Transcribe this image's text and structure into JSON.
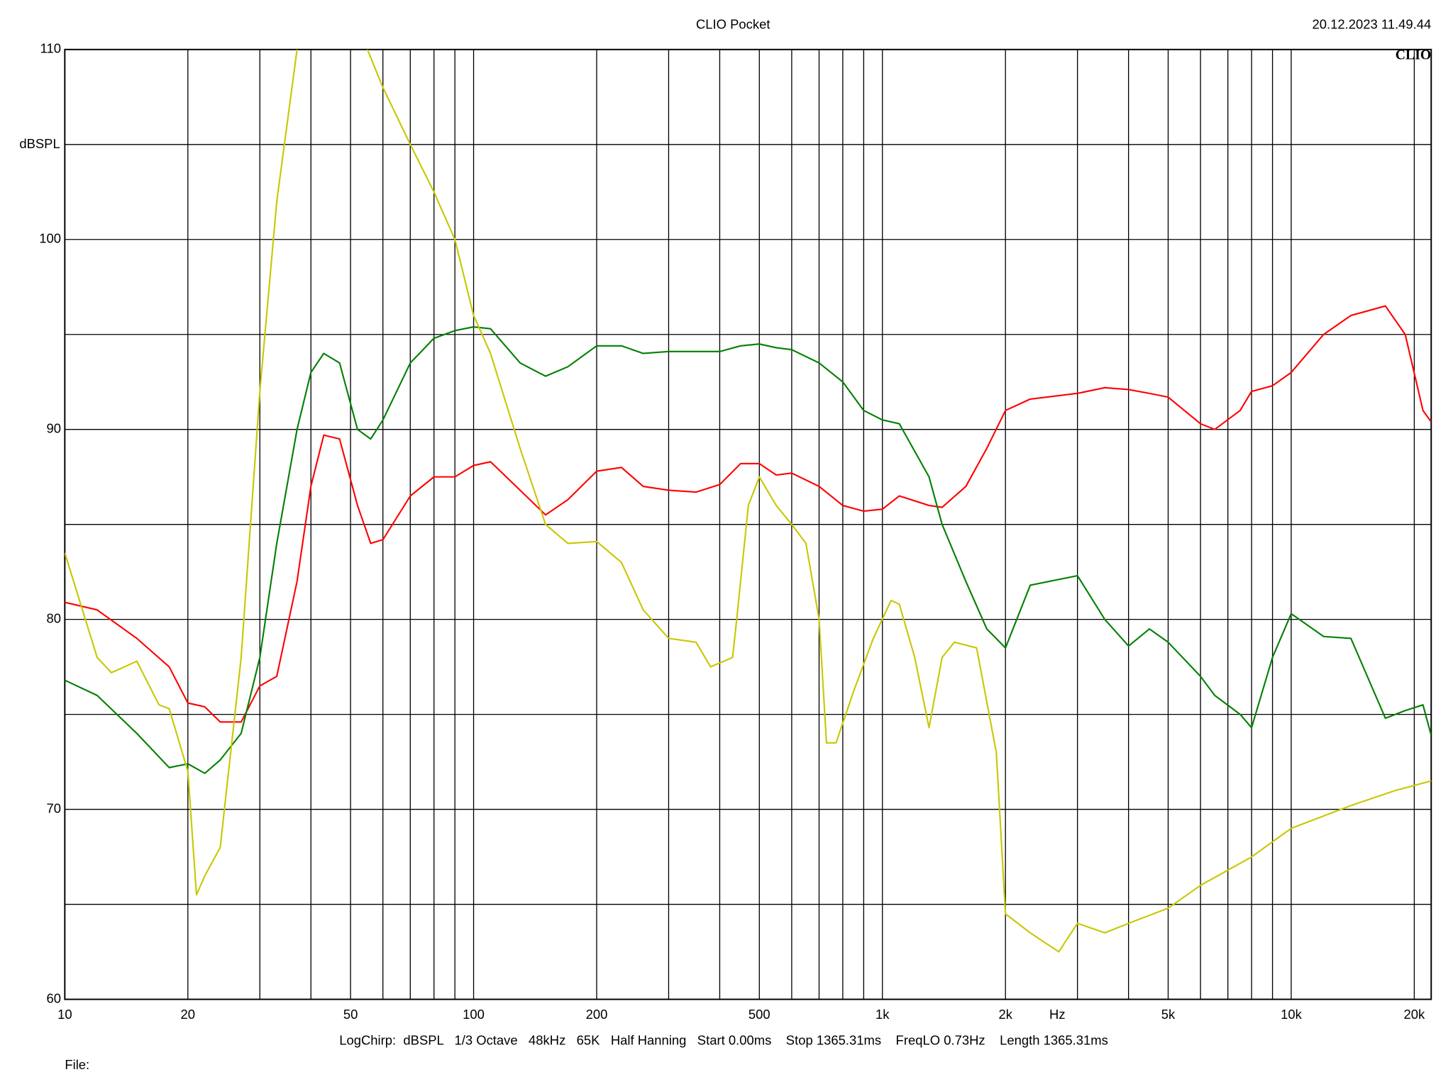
{
  "chart_data": {
    "type": "line",
    "title": "CLIO Pocket",
    "timestamp": "20.12.2023 11.49.44",
    "logo": "CLIO",
    "footer": "LogChirp:  dBSPL   1/3 Octave   48kHz   65K   Half Hanning   Start 0.00ms    Stop 1365.31ms    FreqLO 0.73Hz    Length 1365.31ms",
    "file_label": "File:",
    "x_label": "Hz",
    "y_label": "dBSPL",
    "x_log": true,
    "grid": true,
    "xlim": [
      10,
      22000
    ],
    "ylim": [
      60,
      110
    ],
    "xticks": [
      10,
      20,
      50,
      100,
      200,
      500,
      {
        "value": 1000,
        "label": "1k"
      },
      {
        "value": 2000,
        "label": "2k"
      },
      {
        "value": 5000,
        "label": "5k"
      },
      {
        "value": 10000,
        "label": "10k"
      },
      {
        "value": 20000,
        "label": "20k"
      }
    ],
    "xminor_ticks": [
      30,
      40,
      60,
      70,
      80,
      90,
      300,
      400,
      600,
      700,
      800,
      900,
      3000,
      4000,
      6000,
      7000,
      8000,
      9000
    ],
    "yticks": [
      60,
      70,
      80,
      90,
      100,
      110
    ],
    "yminor_ticks": [
      65,
      75,
      85,
      95,
      105
    ],
    "series": [
      {
        "color": "#ff0000",
        "x": [
          10,
          12,
          15,
          18,
          20,
          22,
          24,
          27,
          30,
          33,
          37,
          40,
          43,
          47,
          52,
          56,
          60,
          70,
          80,
          90,
          100,
          110,
          130,
          150,
          170,
          200,
          230,
          260,
          300,
          350,
          400,
          450,
          500,
          550,
          600,
          700,
          800,
          900,
          1000,
          1100,
          1300,
          1400,
          1600,
          1800,
          2000,
          2300,
          3000,
          3500,
          4000,
          4500,
          5000,
          6000,
          6500,
          7500,
          8000,
          9000,
          10000,
          12000,
          14000,
          17000,
          19000,
          21000,
          22000
        ],
        "values": [
          80.9,
          80.5,
          79,
          77.5,
          75.6,
          75.4,
          74.6,
          74.6,
          76.5,
          77,
          82,
          87,
          89.7,
          89.5,
          86,
          84,
          84.2,
          86.5,
          87.5,
          87.5,
          88.1,
          88.3,
          86.8,
          85.5,
          86.3,
          87.8,
          88,
          87,
          86.8,
          86.7,
          87.1,
          88.2,
          88.2,
          87.6,
          87.7,
          87,
          86,
          85.7,
          85.8,
          86.5,
          86,
          85.9,
          87,
          89,
          91,
          91.6,
          91.9,
          92.2,
          92.1,
          91.9,
          91.7,
          90.3,
          90,
          91,
          92,
          92.3,
          93,
          95,
          96,
          96.5,
          95,
          91,
          90.4
        ]
      },
      {
        "color": "#008000",
        "x": [
          10,
          12,
          15,
          18,
          20,
          22,
          24,
          27,
          30,
          33,
          37,
          40,
          43,
          47,
          52,
          56,
          60,
          70,
          80,
          90,
          100,
          110,
          130,
          150,
          170,
          200,
          230,
          260,
          300,
          350,
          400,
          450,
          500,
          550,
          600,
          700,
          800,
          900,
          1000,
          1100,
          1300,
          1400,
          1600,
          1800,
          2000,
          2300,
          3000,
          3500,
          4000,
          4500,
          5000,
          6000,
          6500,
          7500,
          8000,
          9000,
          10000,
          12000,
          14000,
          17000,
          19000,
          21000,
          22000
        ],
        "values": [
          76.8,
          76,
          74,
          72.2,
          72.4,
          71.9,
          72.6,
          74,
          78,
          84,
          90,
          93,
          94,
          93.5,
          90,
          89.5,
          90.5,
          93.5,
          94.8,
          95.2,
          95.4,
          95.3,
          93.5,
          92.8,
          93.3,
          94.4,
          94.4,
          94,
          94.1,
          94.1,
          94.1,
          94.4,
          94.5,
          94.3,
          94.2,
          93.5,
          92.5,
          91,
          90.5,
          90.3,
          87.5,
          85,
          82,
          79.5,
          78.5,
          81.8,
          82.3,
          80,
          78.6,
          79.5,
          78.8,
          77,
          76,
          75,
          74.3,
          78,
          80.3,
          79.1,
          79,
          74.8,
          75.2,
          75.5,
          73.9
        ]
      },
      {
        "color": "#c8c800",
        "x": [
          10,
          12,
          13,
          14,
          15,
          17,
          18,
          20,
          21,
          22,
          24,
          27,
          30,
          33,
          37,
          40,
          47,
          55,
          60,
          70,
          80,
          90,
          100,
          110,
          130,
          150,
          170,
          200,
          230,
          260,
          300,
          350,
          380,
          430,
          440,
          470,
          500,
          550,
          600,
          650,
          700,
          730,
          770,
          850,
          950,
          1050,
          1100,
          1200,
          1300,
          1400,
          1500,
          1700,
          1900,
          2000,
          2300,
          2700,
          3000,
          3500,
          4000,
          5000,
          6000,
          8000,
          10000,
          14000,
          18000,
          22000
        ],
        "values": [
          83.5,
          78,
          77.2,
          77.5,
          77.8,
          75.5,
          75.3,
          72,
          65.5,
          66.5,
          68,
          78,
          92,
          102,
          110,
          null,
          null,
          110,
          108,
          105,
          102.5,
          100,
          96,
          94,
          89,
          85,
          84,
          84.1,
          83,
          80.5,
          79,
          78.8,
          77.5,
          78,
          80,
          86,
          87.5,
          86,
          85,
          84,
          80,
          73.5,
          73.5,
          76.2,
          79,
          81,
          80.8,
          78,
          74.3,
          78,
          78.8,
          78.5,
          73,
          64.5,
          63.5,
          62.5,
          64,
          63.5,
          64,
          64.8,
          66,
          67.5,
          69,
          70.2,
          71,
          71.5
        ]
      }
    ]
  }
}
